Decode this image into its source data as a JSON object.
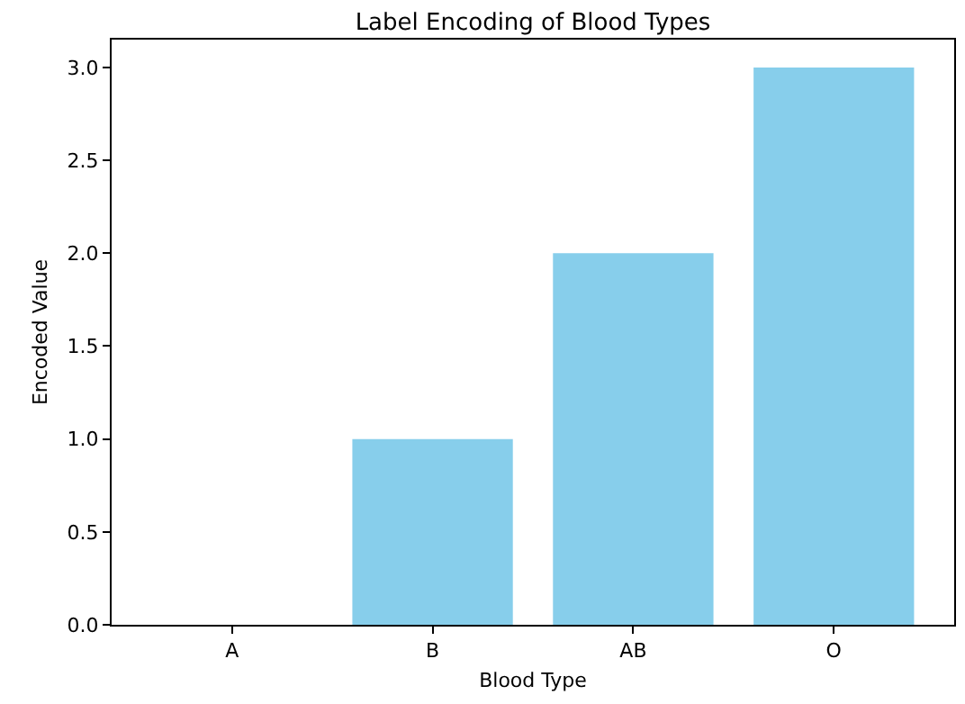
{
  "chart_data": {
    "type": "bar",
    "title": "Label Encoding of Blood Types",
    "xlabel": "Blood Type",
    "ylabel": "Encoded Value",
    "categories": [
      "A",
      "B",
      "AB",
      "O"
    ],
    "values": [
      0,
      1,
      2,
      3
    ],
    "color": "#87ceeb",
    "ylim": [
      0,
      3.15
    ],
    "yticks": [
      {
        "value": 0,
        "label": "0.0"
      },
      {
        "value": 0.5,
        "label": "0.5"
      },
      {
        "value": 1,
        "label": "1.0"
      },
      {
        "value": 1.5,
        "label": "1.5"
      },
      {
        "value": 2,
        "label": "2.0"
      },
      {
        "value": 2.5,
        "label": "2.5"
      },
      {
        "value": 3,
        "label": "3.0"
      }
    ],
    "data_labels": false
  }
}
